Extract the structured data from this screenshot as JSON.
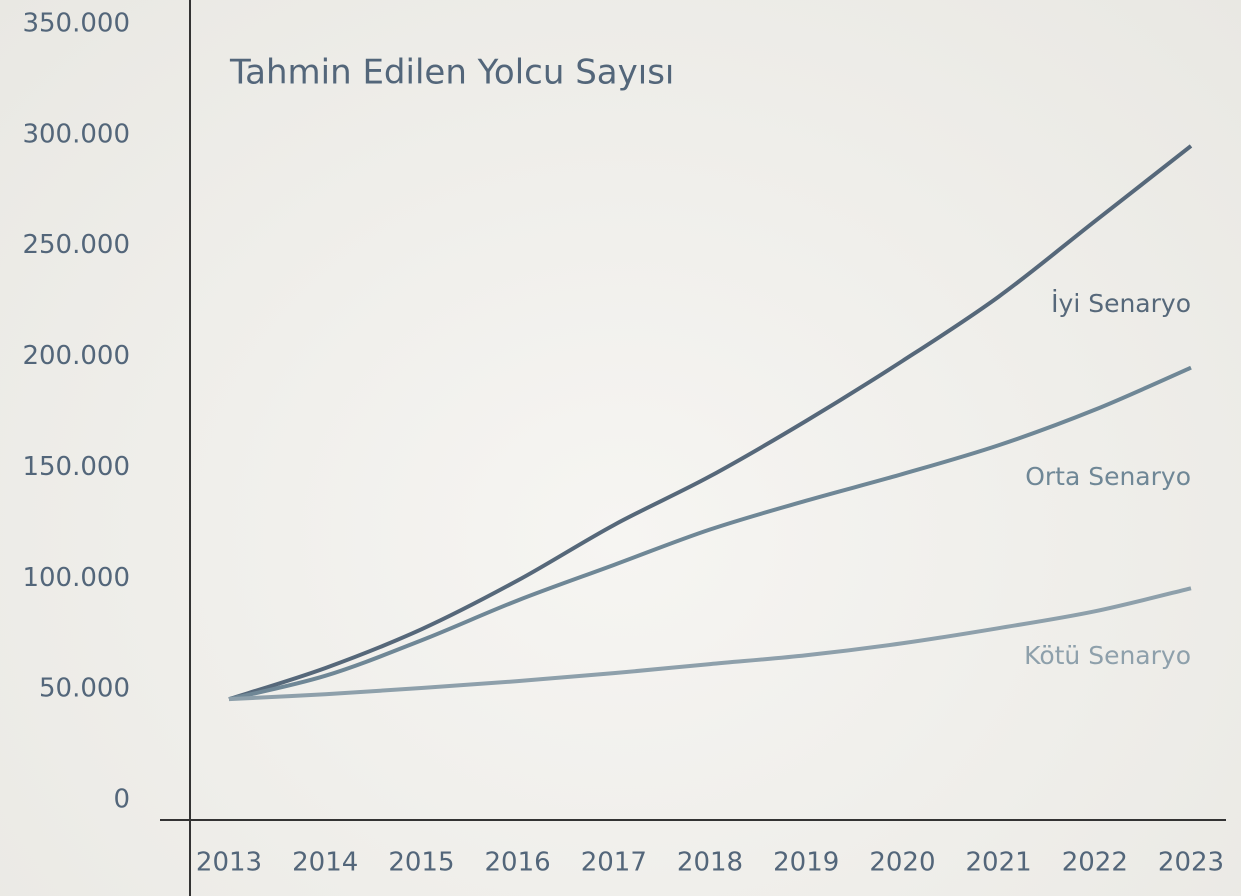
{
  "chart_data": {
    "type": "line",
    "title": "Tahmin Edilen Yolcu Sayısı",
    "categories": [
      "2013",
      "2014",
      "2015",
      "2016",
      "2017",
      "2018",
      "2019",
      "2020",
      "2021",
      "2022",
      "2023"
    ],
    "series": [
      {
        "name": "İyi Senaryo",
        "color": "#56687a",
        "values": [
          45500,
          59500,
          77000,
          99000,
          124000,
          146000,
          171000,
          198000,
          227000,
          261000,
          295000
        ]
      },
      {
        "name": "Orta Senaryo",
        "color": "#6f8796",
        "values": [
          45500,
          56000,
          72000,
          90000,
          106000,
          122000,
          135000,
          147000,
          160000,
          176000,
          195000
        ]
      },
      {
        "name": "Kötü Senaryo",
        "color": "#8ea0ab",
        "values": [
          45500,
          47700,
          50500,
          53600,
          57200,
          61300,
          65300,
          70700,
          77500,
          85100,
          95500
        ]
      }
    ],
    "ylim": [
      0,
      350000
    ],
    "yticks": [
      0,
      {
        "value": 50000,
        "label": "50.000"
      },
      {
        "value": 100000,
        "label": "100.000"
      },
      {
        "value": 150000,
        "label": "150.000"
      },
      {
        "value": 200000,
        "label": "200.000"
      },
      {
        "value": 250000,
        "label": "250.000"
      },
      {
        "value": 300000,
        "label": "300.000"
      },
      {
        "value": 350000,
        "label": "350.000"
      }
    ]
  }
}
